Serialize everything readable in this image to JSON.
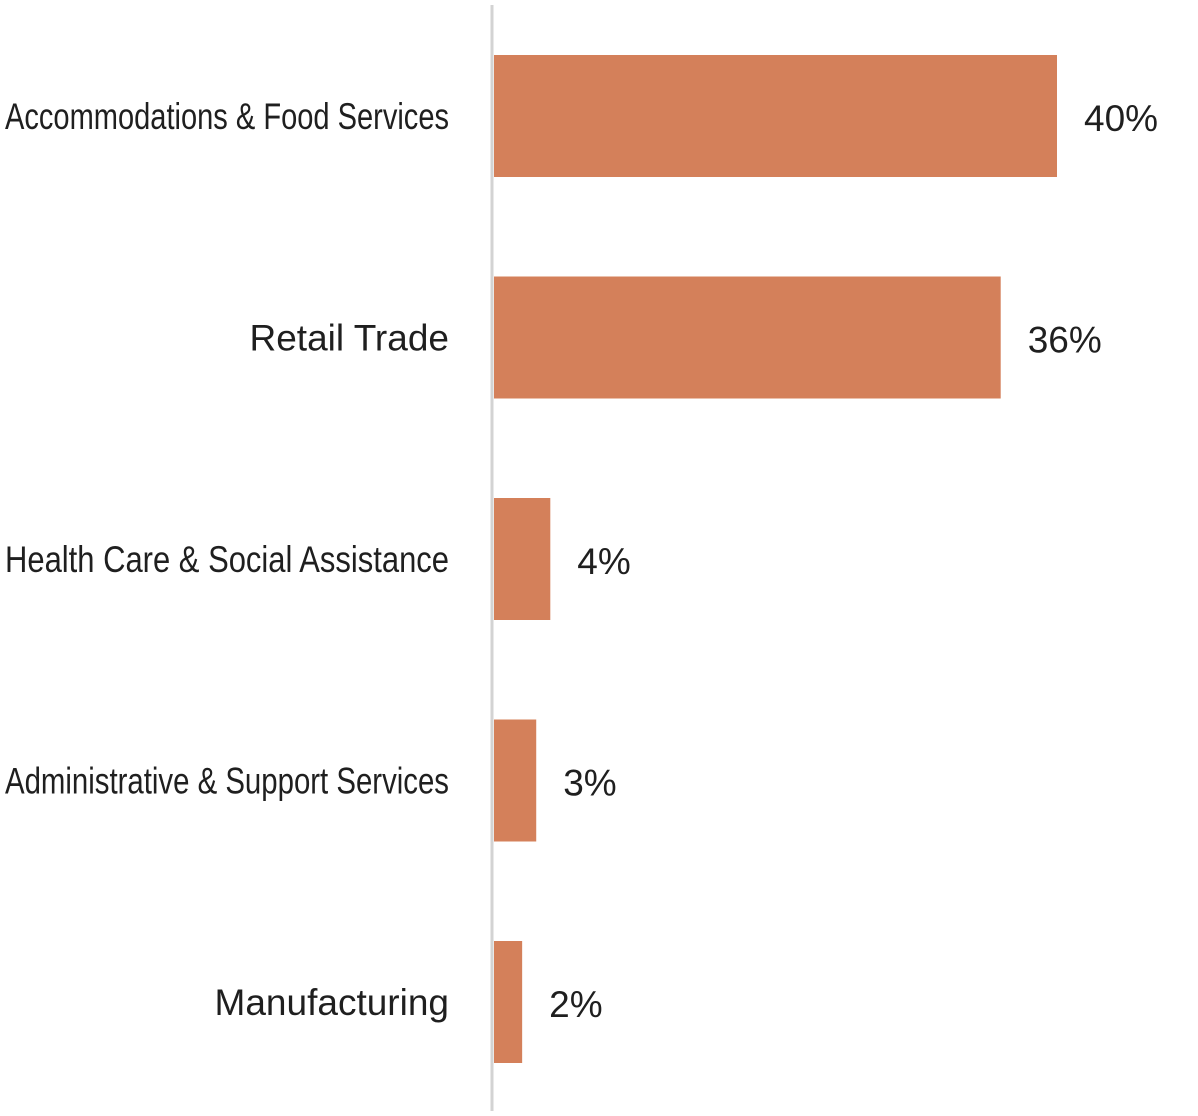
{
  "colors": {
    "bar": "#D4805A",
    "axis": "#D3D3D3",
    "text": "#1F1F1F",
    "background": "#FFFFFF"
  },
  "chart_data": {
    "type": "bar",
    "orientation": "horizontal",
    "title": "",
    "xlabel": "",
    "ylabel": "",
    "grid": false,
    "legend": "none",
    "xlim": [
      0,
      40
    ],
    "categories": [
      "Accommodations & Food Services",
      "Retail Trade",
      "Health Care & Social Assistance",
      "Administrative & Support Services",
      "Manufacturing"
    ],
    "values": [
      40,
      36,
      4,
      3,
      2
    ],
    "value_labels": [
      "40%",
      "36%",
      "4%",
      "3%",
      "2%"
    ]
  }
}
